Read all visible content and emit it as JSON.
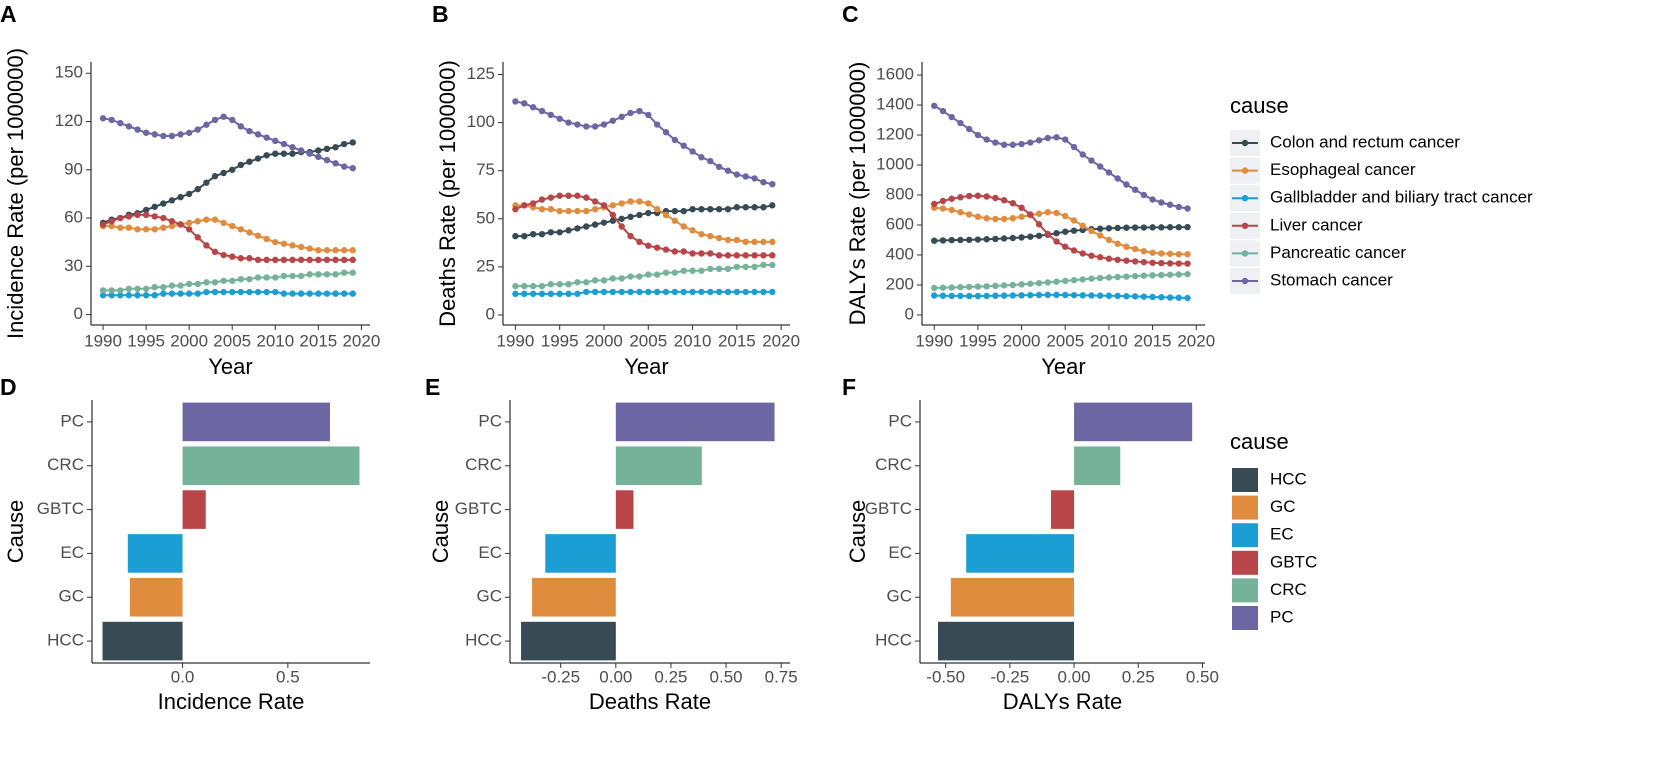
{
  "chart_data": [
    {
      "type": "line",
      "panel": "A",
      "ylabel": "Incidence Rate (per 1000000)",
      "xlabel": "Year",
      "x": [
        1990,
        1991,
        1992,
        1993,
        1994,
        1995,
        1996,
        1997,
        1998,
        1999,
        2000,
        2001,
        2002,
        2003,
        2004,
        2005,
        2006,
        2007,
        2008,
        2009,
        2010,
        2011,
        2012,
        2013,
        2014,
        2015,
        2016,
        2017,
        2018,
        2019
      ],
      "xlim": [
        1988.6,
        2021
      ],
      "xticks": [
        1990,
        1995,
        2000,
        2005,
        2010,
        2015,
        2020
      ],
      "ylim": [
        -6.5,
        157
      ],
      "yticks": [
        0,
        30,
        60,
        90,
        120,
        150
      ],
      "series": [
        {
          "name": "Colon and rectum cancer",
          "color": "#384b55",
          "values": [
            57,
            59,
            60,
            62,
            63,
            65,
            67,
            69,
            71,
            73,
            75,
            78,
            82,
            86,
            88,
            90,
            93,
            95,
            97,
            99,
            100,
            100,
            100,
            101,
            101,
            102,
            103,
            104,
            106,
            107
          ]
        },
        {
          "name": "Esophageal cancer",
          "color": "#e08c3e",
          "values": [
            55,
            55,
            54,
            54,
            53,
            53,
            53,
            54,
            55,
            56,
            57,
            58,
            59,
            59,
            57,
            55,
            53,
            51,
            49,
            47,
            45,
            44,
            43,
            42,
            41,
            40,
            40,
            40,
            40,
            40
          ]
        },
        {
          "name": "Gallbladder and biliary tract cancer",
          "color": "#1b9ed4",
          "values": [
            12,
            12,
            12,
            12,
            12,
            12,
            12,
            13,
            13,
            13,
            13,
            13,
            14,
            14,
            14,
            14,
            14,
            14,
            14,
            14,
            14,
            13,
            13,
            13,
            13,
            13,
            13,
            13,
            13,
            13
          ]
        },
        {
          "name": "Liver cancer",
          "color": "#b84648",
          "values": [
            56,
            58,
            60,
            61,
            62,
            62,
            61,
            60,
            58,
            56,
            53,
            48,
            43,
            39,
            37,
            36,
            35,
            35,
            34,
            34,
            34,
            34,
            34,
            34,
            34,
            34,
            34,
            34,
            34,
            34
          ]
        },
        {
          "name": "Pancreatic cancer",
          "color": "#76b29a",
          "values": [
            15,
            15,
            15,
            16,
            16,
            16,
            17,
            17,
            18,
            18,
            19,
            19,
            20,
            20,
            21,
            21,
            22,
            22,
            23,
            23,
            23,
            24,
            24,
            24,
            25,
            25,
            25,
            25,
            26,
            26
          ]
        },
        {
          "name": "Stomach cancer",
          "color": "#6c67a2",
          "values": [
            122,
            121,
            119,
            117,
            115,
            113,
            112,
            111,
            111,
            112,
            113,
            115,
            118,
            121,
            123,
            121,
            117,
            114,
            112,
            110,
            108,
            106,
            104,
            102,
            100,
            98,
            96,
            94,
            92,
            91
          ]
        }
      ]
    },
    {
      "type": "line",
      "panel": "B",
      "ylabel": "Deaths Rate (per 1000000)",
      "xlabel": "Year",
      "x": [
        1990,
        1991,
        1992,
        1993,
        1994,
        1995,
        1996,
        1997,
        1998,
        1999,
        2000,
        2001,
        2002,
        2003,
        2004,
        2005,
        2006,
        2007,
        2008,
        2009,
        2010,
        2011,
        2012,
        2013,
        2014,
        2015,
        2016,
        2017,
        2018,
        2019
      ],
      "xlim": [
        1988.6,
        2021
      ],
      "xticks": [
        1990,
        1995,
        2000,
        2005,
        2010,
        2015,
        2020
      ],
      "ylim": [
        -5.2,
        131.5
      ],
      "yticks": [
        0,
        25,
        50,
        75,
        100,
        125
      ],
      "series": [
        {
          "name": "Colon and rectum cancer",
          "color": "#384b55",
          "values": [
            41,
            41,
            42,
            42,
            43,
            43,
            44,
            45,
            46,
            47,
            48,
            49,
            50,
            51,
            52,
            53,
            53,
            54,
            54,
            54,
            55,
            55,
            55,
            55,
            55,
            56,
            56,
            56,
            56,
            57
          ]
        },
        {
          "name": "Esophageal cancer",
          "color": "#e08c3e",
          "values": [
            57,
            57,
            56,
            55,
            55,
            54,
            54,
            54,
            54,
            55,
            56,
            57,
            58,
            59,
            59,
            58,
            55,
            52,
            49,
            46,
            44,
            42,
            41,
            40,
            39,
            39,
            38,
            38,
            38,
            38
          ]
        },
        {
          "name": "Gallbladder and biliary tract cancer",
          "color": "#1b9ed4",
          "values": [
            11,
            11,
            11,
            11,
            11,
            11,
            11,
            11,
            12,
            12,
            12,
            12,
            12,
            12,
            12,
            12,
            12,
            12,
            12,
            12,
            12,
            12,
            12,
            12,
            12,
            12,
            12,
            12,
            12,
            12
          ]
        },
        {
          "name": "Liver cancer",
          "color": "#b84648",
          "values": [
            55,
            57,
            58,
            60,
            61,
            62,
            62,
            62,
            61,
            59,
            57,
            52,
            46,
            41,
            38,
            36,
            35,
            34,
            33,
            33,
            32,
            32,
            32,
            31,
            31,
            31,
            31,
            31,
            31,
            31
          ]
        },
        {
          "name": "Pancreatic cancer",
          "color": "#76b29a",
          "values": [
            15,
            15,
            15,
            15,
            16,
            16,
            16,
            17,
            17,
            18,
            18,
            19,
            19,
            20,
            20,
            21,
            21,
            22,
            22,
            23,
            23,
            23,
            24,
            24,
            24,
            25,
            25,
            25,
            26,
            26
          ]
        },
        {
          "name": "Stomach cancer",
          "color": "#6c67a2",
          "values": [
            111,
            110,
            108,
            106,
            104,
            102,
            100,
            99,
            98,
            98,
            99,
            101,
            103,
            105,
            106,
            104,
            99,
            95,
            91,
            88,
            85,
            82,
            80,
            77,
            75,
            73,
            72,
            71,
            69,
            68
          ]
        }
      ]
    },
    {
      "type": "line",
      "panel": "C",
      "ylabel": "DALYs Rate (per 1000000)",
      "xlabel": "Year",
      "legend_title": "cause",
      "x": [
        1990,
        1991,
        1992,
        1993,
        1994,
        1995,
        1996,
        1997,
        1998,
        1999,
        2000,
        2001,
        2002,
        2003,
        2004,
        2005,
        2006,
        2007,
        2008,
        2009,
        2010,
        2011,
        2012,
        2013,
        2014,
        2015,
        2016,
        2017,
        2018,
        2019
      ],
      "xlim": [
        1988.6,
        2021
      ],
      "xticks": [
        1990,
        1995,
        2000,
        2005,
        2010,
        2015,
        2020
      ],
      "ylim": [
        -67,
        1687
      ],
      "yticks": [
        0,
        200,
        400,
        600,
        800,
        1000,
        1200,
        1400,
        1600
      ],
      "series": [
        {
          "name": "Colon and rectum cancer",
          "color": "#384b55",
          "values": [
            495,
            497,
            499,
            500,
            501,
            503,
            505,
            507,
            510,
            513,
            517,
            522,
            528,
            535,
            545,
            555,
            562,
            567,
            572,
            575,
            578,
            580,
            582,
            583,
            583,
            584,
            584,
            585,
            585,
            586
          ]
        },
        {
          "name": "Esophageal cancer",
          "color": "#e08c3e",
          "values": [
            715,
            710,
            700,
            685,
            670,
            655,
            645,
            640,
            640,
            645,
            655,
            665,
            675,
            685,
            680,
            660,
            630,
            595,
            560,
            530,
            500,
            475,
            455,
            440,
            425,
            415,
            410,
            408,
            405,
            405
          ]
        },
        {
          "name": "Gallbladder and biliary tract cancer",
          "color": "#1b9ed4",
          "values": [
            130,
            128,
            127,
            127,
            126,
            126,
            127,
            128,
            129,
            130,
            131,
            132,
            133,
            134,
            134,
            133,
            132,
            131,
            130,
            129,
            128,
            127,
            125,
            124,
            122,
            120,
            118,
            116,
            115,
            113
          ]
        },
        {
          "name": "Liver cancer",
          "color": "#b84648",
          "values": [
            740,
            760,
            775,
            785,
            793,
            795,
            790,
            780,
            765,
            745,
            715,
            670,
            605,
            540,
            490,
            455,
            430,
            410,
            395,
            385,
            375,
            368,
            362,
            357,
            352,
            348,
            346,
            344,
            343,
            342
          ]
        },
        {
          "name": "Pancreatic cancer",
          "color": "#76b29a",
          "values": [
            180,
            182,
            183,
            185,
            187,
            189,
            191,
            194,
            197,
            200,
            204,
            208,
            212,
            217,
            222,
            227,
            232,
            237,
            242,
            246,
            250,
            253,
            256,
            259,
            262,
            264,
            266,
            268,
            270,
            272
          ]
        },
        {
          "name": "Stomach cancer",
          "color": "#6c67a2",
          "values": [
            1395,
            1360,
            1320,
            1280,
            1240,
            1200,
            1170,
            1150,
            1135,
            1135,
            1140,
            1150,
            1165,
            1180,
            1185,
            1170,
            1120,
            1070,
            1030,
            990,
            950,
            910,
            870,
            835,
            800,
            770,
            750,
            735,
            720,
            710
          ]
        }
      ]
    },
    {
      "type": "hbar",
      "panel": "D",
      "ylabel": "Cause",
      "xlabel": "Incidence Rate",
      "categories": [
        "HCC",
        "GC",
        "EC",
        "GBTC",
        "CRC",
        "PC"
      ],
      "values": [
        -0.38,
        -0.25,
        -0.26,
        0.11,
        0.84,
        0.7
      ],
      "colors": [
        "#384b55",
        "#e08c3e",
        "#1b9ed4",
        "#b84648",
        "#76b29a",
        "#6c67a2"
      ],
      "xlim": [
        -0.43,
        0.89
      ],
      "xticks": [
        {
          "value": 0,
          "label": "0.0"
        },
        {
          "value": 0.5,
          "label": "0.5"
        }
      ]
    },
    {
      "type": "hbar",
      "panel": "E",
      "ylabel": "Cause",
      "xlabel": "Deaths Rate",
      "categories": [
        "HCC",
        "GC",
        "EC",
        "GBTC",
        "CRC",
        "PC"
      ],
      "values": [
        -0.43,
        -0.38,
        -0.32,
        0.08,
        0.39,
        0.72
      ],
      "colors": [
        "#384b55",
        "#e08c3e",
        "#1b9ed4",
        "#b84648",
        "#76b29a",
        "#6c67a2"
      ],
      "xlim": [
        -0.48,
        0.79
      ],
      "xticks": [
        -0.25,
        {
          "value": 0,
          "label": "0.00"
        },
        0.25,
        {
          "value": 0.5,
          "label": "0.50"
        },
        0.75
      ]
    },
    {
      "type": "hbar",
      "panel": "F",
      "ylabel": "Cause",
      "xlabel": "DALYs Rate",
      "legend_title": "cause",
      "categories": [
        "HCC",
        "GC",
        "EC",
        "GBTC",
        "CRC",
        "PC"
      ],
      "values": [
        -0.53,
        -0.48,
        -0.42,
        -0.09,
        0.18,
        0.46
      ],
      "colors": [
        "#384b55",
        "#e08c3e",
        "#1b9ed4",
        "#b84648",
        "#76b29a",
        "#6c67a2"
      ],
      "xlim": [
        -0.6,
        0.51
      ],
      "xticks": [
        {
          "value": -0.5,
          "label": "-0.50"
        },
        -0.25,
        {
          "value": 0,
          "label": "0.00"
        },
        0.25,
        {
          "value": 0.5,
          "label": "0.50"
        }
      ]
    }
  ]
}
